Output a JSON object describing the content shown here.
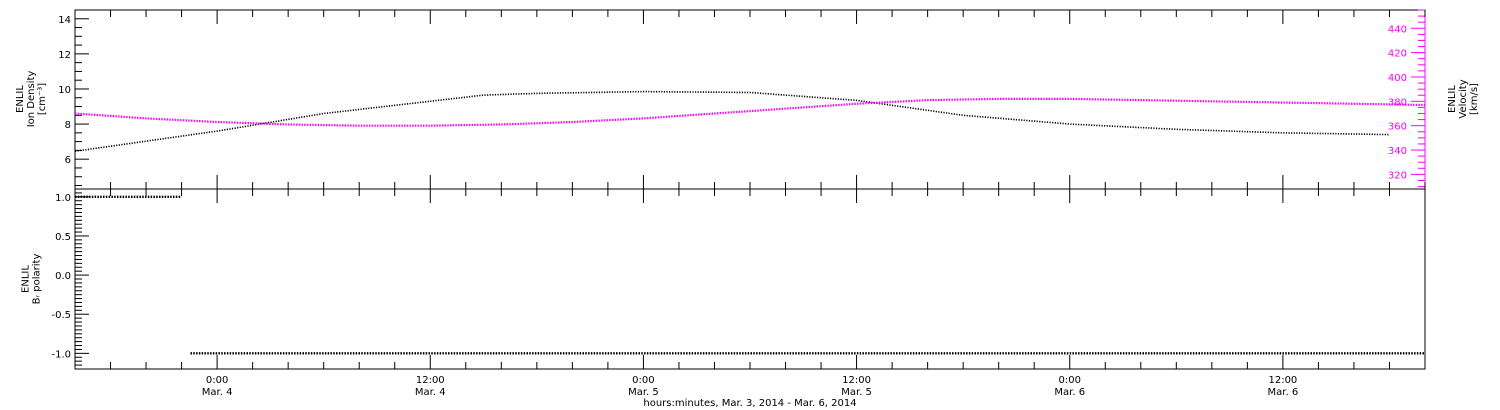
{
  "colors": {
    "series_primary": "#000000",
    "series_velocity": "#ff00ff",
    "axis": "#000000"
  },
  "chart_data": [
    {
      "type": "scatter",
      "panel": "top",
      "ylabel_lines": [
        "ENLIL",
        "Ion Density",
        "[cm⁻³]"
      ],
      "y2label_lines": [
        "ENLIL",
        "Velocity",
        "[km/s]"
      ],
      "ylim": [
        4.3,
        14.5
      ],
      "yticks": [
        6,
        8,
        10,
        12,
        14
      ],
      "ytick_labels": [
        "6",
        "8",
        "10",
        "12",
        "14"
      ],
      "y2lim": [
        308,
        455
      ],
      "y2ticks": [
        320,
        340,
        360,
        380,
        400,
        420,
        440
      ],
      "y2tick_labels": [
        "320",
        "340",
        "360",
        "380",
        "400",
        "420",
        "440"
      ],
      "series": [
        {
          "color": "#000000",
          "axis": "left",
          "x": [
            -8,
            0,
            6,
            12,
            15,
            18,
            24,
            30,
            36,
            42,
            48,
            54,
            60,
            66
          ],
          "y": [
            6.45,
            7.6,
            8.6,
            9.3,
            9.65,
            9.75,
            9.85,
            9.8,
            9.35,
            8.5,
            8.0,
            7.7,
            7.5,
            7.4
          ]
        },
        {
          "color": "#ff00ff",
          "axis": "right",
          "x": [
            -8,
            -4,
            0,
            4,
            8,
            12,
            16,
            20,
            24,
            28,
            32,
            36,
            40,
            44,
            48,
            52,
            56,
            60,
            64,
            68
          ],
          "y": [
            370,
            366,
            363,
            361,
            360,
            360,
            361,
            363,
            366,
            370,
            374,
            378,
            381,
            382,
            382,
            381,
            380,
            379,
            378,
            377
          ]
        }
      ]
    },
    {
      "type": "scatter",
      "panel": "bottom",
      "ylabel_lines": [
        "ENLIL",
        "Bᵣ polarity"
      ],
      "ylim": [
        -1.2,
        1.1
      ],
      "yticks": [
        -1.0,
        -0.5,
        0.0,
        0.5,
        1.0
      ],
      "ytick_labels": [
        "-1.0",
        "-0.5",
        "0.0",
        "0.5",
        "1.0"
      ],
      "series": [
        {
          "color": "#000000",
          "x": [
            -8,
            -2
          ],
          "y": [
            1,
            1
          ]
        },
        {
          "color": "#000000",
          "x": [
            -1.5,
            68
          ],
          "y": [
            -1,
            -1
          ]
        }
      ]
    }
  ],
  "x_axis": {
    "range_hours": [
      -8,
      68
    ],
    "major_hours": [
      0,
      12,
      24,
      36,
      48,
      60
    ],
    "time_labels": [
      "0:00",
      "12:00",
      "0:00",
      "12:00",
      "0:00",
      "12:00"
    ],
    "date_labels": [
      "Mar. 4",
      "Mar. 4",
      "Mar. 5",
      "Mar. 5",
      "Mar. 6",
      "Mar. 6"
    ],
    "title": "hours:minutes, Mar.  3, 2014 - Mar.  6, 2014"
  }
}
